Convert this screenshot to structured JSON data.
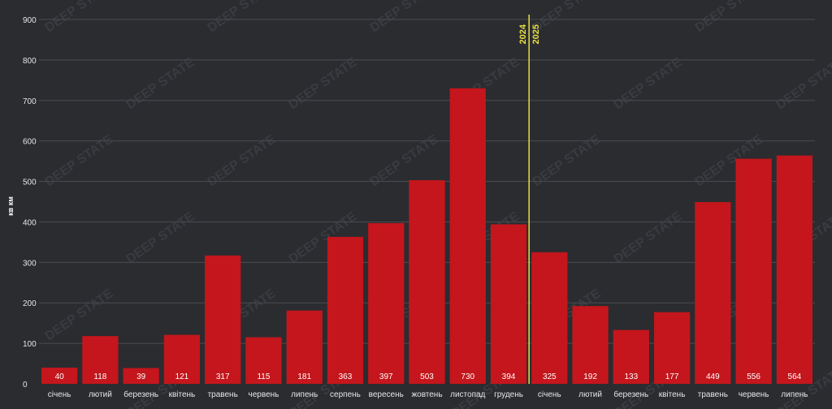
{
  "chart_data": {
    "type": "bar",
    "ylabel": "кв км",
    "ylim": [
      0,
      900
    ],
    "yticks": [
      0,
      100,
      200,
      300,
      400,
      500,
      600,
      700,
      800,
      900
    ],
    "grid": true,
    "categories": [
      "січень",
      "лютий",
      "березень",
      "квітень",
      "травень",
      "червень",
      "липень",
      "серпень",
      "вересень",
      "жовтень",
      "листопад",
      "грудень",
      "січень",
      "лютий",
      "березень",
      "квітень",
      "травень",
      "червень",
      "липень"
    ],
    "values": [
      40,
      118,
      39,
      121,
      317,
      115,
      181,
      363,
      397,
      503,
      730,
      394,
      325,
      192,
      133,
      177,
      449,
      556,
      564
    ],
    "bar_color": "#c4161c",
    "divider": {
      "between_index": [
        11,
        12
      ],
      "label_left": "2024",
      "label_right": "2025",
      "color": "#e8e040"
    },
    "watermark": "DEEP STATE"
  }
}
